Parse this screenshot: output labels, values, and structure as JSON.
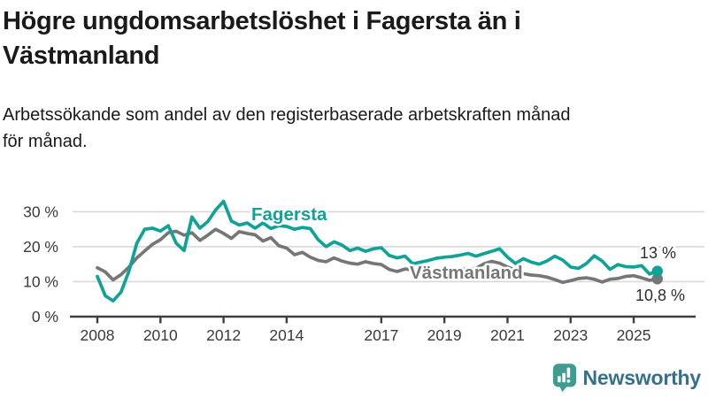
{
  "header": {
    "title": "Högre ungdomsarbetslöshet i Fagersta än i Västmanland",
    "title_lines": [
      "Högre ungdomsarbetslöshet i Fagersta än i",
      "Västmanland"
    ],
    "subtitle": "Arbetssökande som andel av den registerbaserade arbetskraften månad för månad.",
    "subtitle_lines": [
      "Arbetssökande som andel av den registerbaserade arbetskraften månad",
      "för månad."
    ]
  },
  "footer": {
    "brand": "Newsworthy"
  },
  "colors": {
    "accent_teal": "#10a296",
    "series_gray": "#767676",
    "grid": "#d9d9d9",
    "axis": "#3f3f3f",
    "tick_label": "#3a3a3a",
    "text": "#1a1a1a",
    "logo_icon": "#3f9c90",
    "logo_text": "#35708c",
    "halo": "#ffffff"
  },
  "chart_data": {
    "type": "line",
    "title": "Högre ungdomsarbetslöshet i Fagersta än i Västmanland",
    "subtitle": "Arbetssökande som andel av den registerbaserade arbetskraften månad för månad.",
    "x_start": 2008.0,
    "x_step": 0.25,
    "xlim": [
      2007.2,
      2027.0
    ],
    "ylim": [
      0,
      34
    ],
    "grid": "horizontal",
    "yticks": [
      0,
      10,
      20,
      30
    ],
    "ytick_suffix": " %",
    "xticks": [
      2008,
      2010,
      2012,
      2014,
      2017,
      2019,
      2021,
      2023,
      2025
    ],
    "legend_position": "inline-labels",
    "series": [
      {
        "name": "Västmanland",
        "color": "#767676",
        "end_label": "10,8 %",
        "end_value": 10.8,
        "values": [
          14.0,
          12.8,
          10.5,
          12.0,
          14.2,
          16.8,
          18.8,
          20.7,
          22.0,
          24.0,
          24.4,
          23.3,
          24.0,
          21.8,
          23.3,
          25.0,
          23.8,
          22.4,
          24.3,
          23.8,
          23.4,
          21.6,
          22.6,
          20.3,
          19.6,
          17.7,
          18.4,
          17.0,
          16.1,
          15.7,
          16.8,
          15.9,
          15.3,
          15.0,
          15.7,
          15.2,
          14.9,
          13.5,
          12.9,
          13.6,
          13.4,
          13.1,
          13.0,
          13.3,
          13.2,
          13.5,
          13.7,
          13.4,
          13.8,
          15.1,
          15.8,
          15.3,
          14.2,
          13.3,
          12.3,
          11.9,
          11.7,
          11.3,
          10.6,
          9.8,
          10.3,
          10.9,
          11.1,
          10.7,
          9.9,
          10.7,
          10.9,
          11.5,
          11.7,
          11.1,
          10.4,
          10.8
        ]
      },
      {
        "name": "Fagersta",
        "color": "#10a296",
        "end_label": "13 %",
        "end_value": 13.0,
        "values": [
          11.5,
          6.0,
          4.5,
          7.0,
          13.0,
          21.0,
          25.0,
          25.3,
          24.5,
          26.0,
          21.0,
          18.9,
          28.5,
          25.3,
          27.2,
          30.5,
          33.0,
          27.3,
          26.2,
          26.8,
          25.3,
          26.8,
          25.2,
          26.0,
          25.8,
          25.0,
          25.5,
          25.2,
          22.0,
          20.0,
          21.4,
          20.5,
          18.9,
          19.6,
          18.7,
          19.4,
          19.7,
          17.5,
          16.8,
          17.3,
          15.1,
          15.6,
          16.1,
          16.7,
          17.0,
          17.2,
          17.6,
          18.1,
          17.3,
          18.0,
          18.7,
          19.4,
          17.0,
          15.2,
          16.6,
          15.6,
          15.0,
          15.9,
          17.3,
          16.2,
          14.2,
          13.8,
          15.2,
          17.4,
          15.9,
          13.5,
          14.9,
          14.3,
          14.2,
          14.6,
          12.2,
          13.0
        ]
      }
    ]
  }
}
